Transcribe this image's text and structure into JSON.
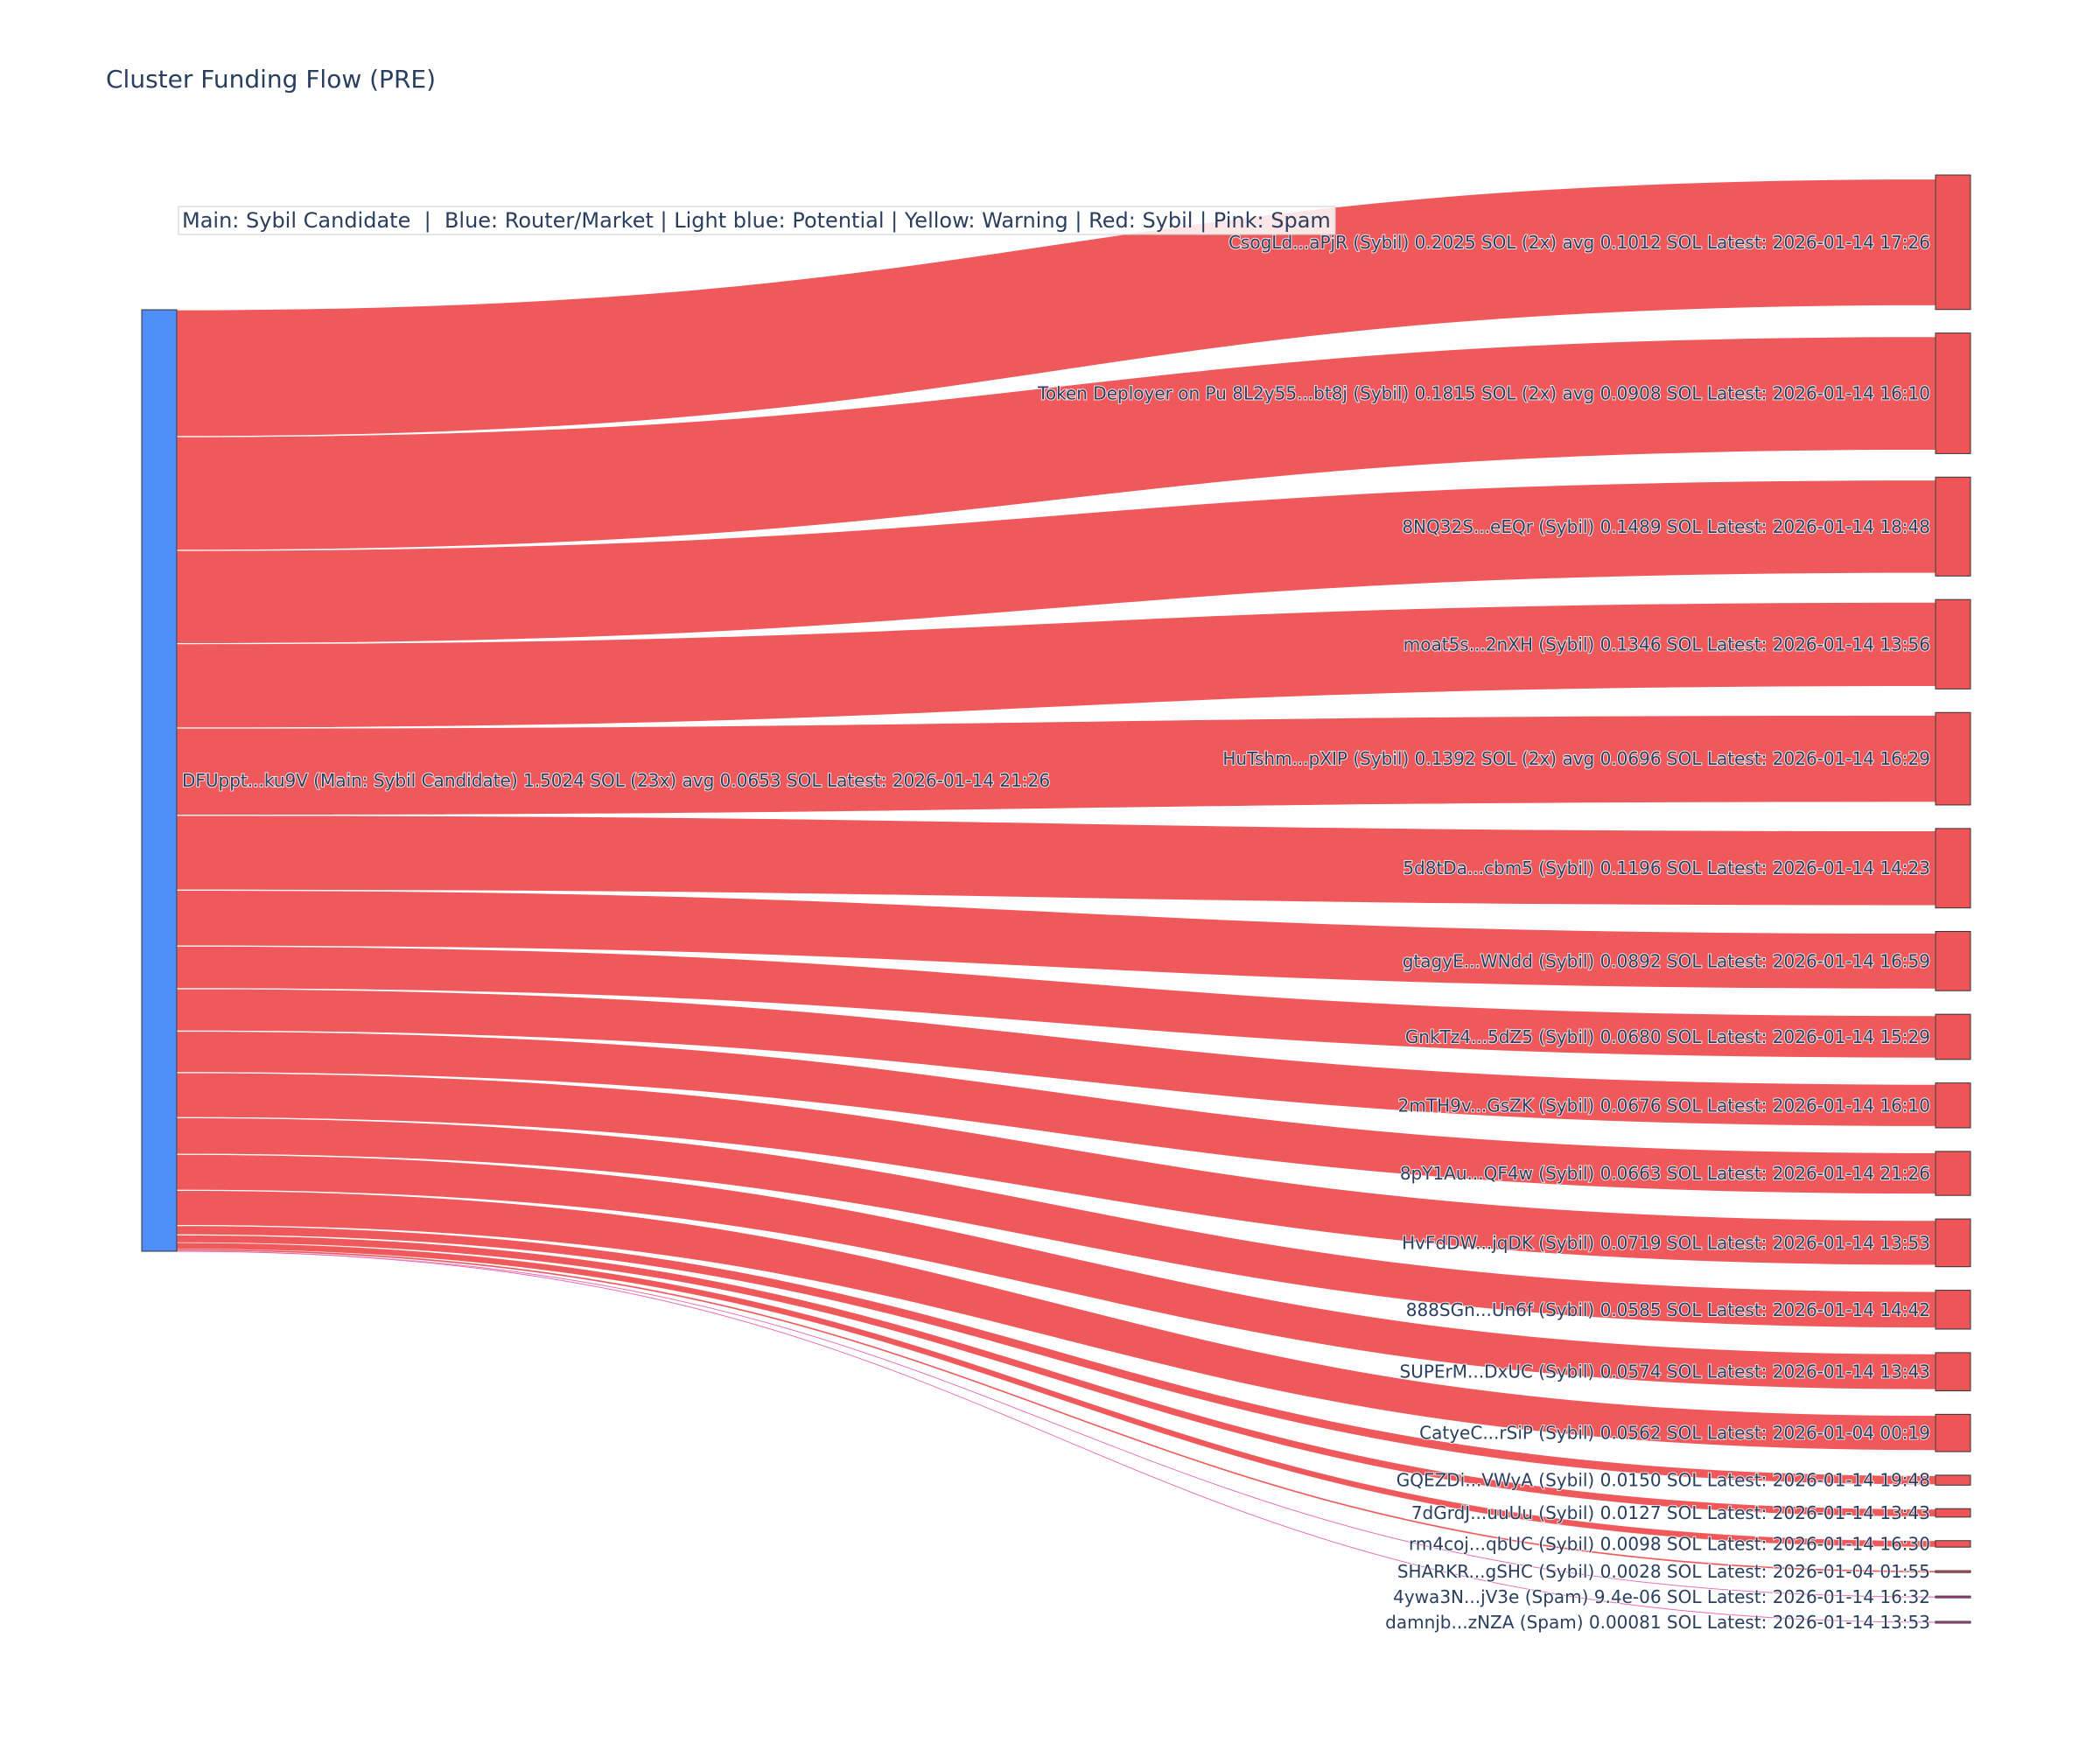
{
  "chart_data": {
    "type": "sankey",
    "title": "Cluster Funding Flow (PRE)",
    "legend_note": "Main: Sybil Candidate  |  Blue: Router/Market | Light blue: Potential | Yellow: Warning | Red: Sybil | Pink: Spam",
    "colors": {
      "source": "#4f8ef7",
      "sybil": "#ef5456",
      "spam": "#e040a0",
      "node_target": "#ef5456",
      "node_border": "#333333",
      "text": "#2a3f5f"
    },
    "source": {
      "label": "DFUppt...ku9V (Main: Sybil Candidate) 1.5024 SOL (23x) avg 0.0653 SOL Latest: 2026-01-14 21:26",
      "value": 1.5024
    },
    "targets": [
      {
        "label": "CsogLd...aPjR (Sybil) 0.2025 SOL (2x) avg 0.1012 SOL Latest: 2026-01-14 17:26",
        "value": 0.2025,
        "kind": "sybil"
      },
      {
        "label": "Token Deployer on Pu 8L2y55...bt8j (Sybil) 0.1815 SOL (2x) avg 0.0908 SOL Latest: 2026-01-14 16:10",
        "value": 0.1815,
        "kind": "sybil"
      },
      {
        "label": "8NQ32S...eEQr (Sybil) 0.1489 SOL Latest: 2026-01-14 18:48",
        "value": 0.1489,
        "kind": "sybil"
      },
      {
        "label": "moat5s...2nXH (Sybil) 0.1346 SOL Latest: 2026-01-14 13:56",
        "value": 0.1346,
        "kind": "sybil"
      },
      {
        "label": "HuTshm...pXIP (Sybil) 0.1392 SOL (2x) avg 0.0696 SOL Latest: 2026-01-14 16:29",
        "value": 0.1392,
        "kind": "sybil"
      },
      {
        "label": "5d8tDa...cbm5 (Sybil) 0.1196 SOL Latest: 2026-01-14 14:23",
        "value": 0.1196,
        "kind": "sybil"
      },
      {
        "label": "gtagyE...WNdd (Sybil) 0.0892 SOL Latest: 2026-01-14 16:59",
        "value": 0.0892,
        "kind": "sybil"
      },
      {
        "label": "GnkTz4...5dZ5 (Sybil) 0.0680 SOL Latest: 2026-01-14 15:29",
        "value": 0.068,
        "kind": "sybil"
      },
      {
        "label": "2mTH9v...GsZK (Sybil) 0.0676 SOL Latest: 2026-01-14 16:10",
        "value": 0.0676,
        "kind": "sybil"
      },
      {
        "label": "8pY1Au...QF4w (Sybil) 0.0663 SOL Latest: 2026-01-14 21:26",
        "value": 0.0663,
        "kind": "sybil"
      },
      {
        "label": "HvFdDW...jqDK (Sybil) 0.0719 SOL Latest: 2026-01-14 13:53",
        "value": 0.0719,
        "kind": "sybil"
      },
      {
        "label": "888SGn...Un6f (Sybil) 0.0585 SOL Latest: 2026-01-14 14:42",
        "value": 0.0585,
        "kind": "sybil"
      },
      {
        "label": "SUPErM...DxUC (Sybil) 0.0574 SOL Latest: 2026-01-14 13:43",
        "value": 0.0574,
        "kind": "sybil"
      },
      {
        "label": "CatyeC...rSiP (Sybil) 0.0562 SOL Latest: 2026-01-04 00:19",
        "value": 0.0562,
        "kind": "sybil"
      },
      {
        "label": "GQEZDi...VWyA (Sybil) 0.0150 SOL Latest: 2026-01-14 19:48",
        "value": 0.015,
        "kind": "sybil"
      },
      {
        "label": "7dGrdJ...uuUu (Sybil) 0.0127 SOL Latest: 2026-01-14 13:43",
        "value": 0.0127,
        "kind": "sybil"
      },
      {
        "label": "rm4coj...qbUC (Sybil) 0.0098 SOL Latest: 2026-01-14 16:30",
        "value": 0.0098,
        "kind": "sybil"
      },
      {
        "label": "SHARKR...gSHC (Sybil) 0.0028 SOL Latest: 2026-01-04 01:55",
        "value": 0.0028,
        "kind": "sybil"
      },
      {
        "label": "4ywa3N...jV3e (Spam) 9.4e-06 SOL Latest: 2026-01-14 16:32",
        "value": 9.4e-06,
        "kind": "spam"
      },
      {
        "label": "damnjb...zNZA (Spam) 0.00081 SOL Latest: 2026-01-14 13:53",
        "value": 0.00081,
        "kind": "spam"
      }
    ]
  }
}
